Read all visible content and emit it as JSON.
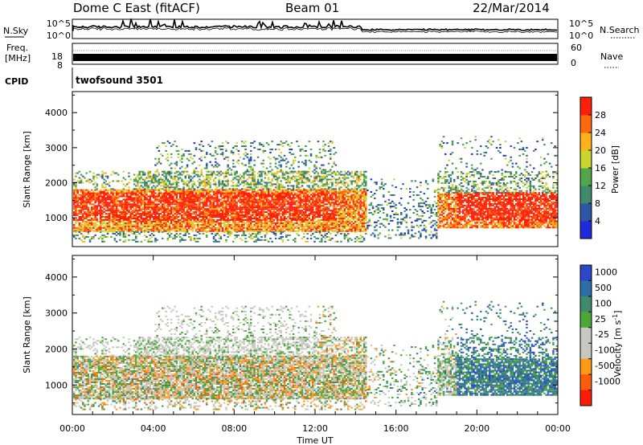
{
  "header": {
    "station": "Dome C East (fitACF)",
    "beam": "Beam 01",
    "date": "22/Mar/2014"
  },
  "panels": {
    "noise": {
      "left_label": "N.Sky",
      "left_ticks": [
        "10^5",
        "10^0"
      ],
      "right_label": "N.Search",
      "right_ticks": [
        "10^5",
        "10^0"
      ]
    },
    "freq": {
      "left_label_1": "Freq.",
      "left_label_2": "[MHz]",
      "left_ticks": [
        "18",
        "8"
      ],
      "right_label": "Nave",
      "right_ticks": [
        "60",
        "0"
      ]
    },
    "cpid": {
      "label": "CPID",
      "program": "twofsound 3501"
    }
  },
  "colors": {
    "power_scale": [
      "#1e2bd8",
      "#2d57a6",
      "#3f8a6a",
      "#52a64a",
      "#c9d630",
      "#ffb21a",
      "#ff6a10",
      "#ff1f0a"
    ],
    "velocity_scale": [
      "#ff1a0a",
      "#ff5d0c",
      "#ff9a18",
      "#c8c8c0",
      "#c8c8c0",
      "#4aa838",
      "#3f8a6a",
      "#2d6ea6",
      "#2a48c8"
    ]
  },
  "chart_data": [
    {
      "type": "heatmap",
      "name": "power",
      "ylabel": "Slant Range [km]",
      "yticks": [
        1000,
        2000,
        3000,
        4000
      ],
      "ylim": [
        180,
        4600
      ],
      "xlim": [
        0,
        24
      ],
      "colorbar": {
        "label": "Power [dB]",
        "ticks": [
          "4",
          "8",
          "12",
          "16",
          "20",
          "24",
          "28"
        ],
        "range": [
          0,
          32
        ]
      }
    },
    {
      "type": "heatmap",
      "name": "velocity",
      "ylabel": "Slant Range [km]",
      "yticks": [
        1000,
        2000,
        3000,
        4000
      ],
      "ylim": [
        180,
        4600
      ],
      "xlim": [
        0,
        24
      ],
      "xlabel": "Time UT",
      "xticks": [
        "00:00",
        "04:00",
        "08:00",
        "12:00",
        "16:00",
        "20:00",
        "00:00"
      ],
      "colorbar": {
        "label": "Velocity [m s",
        "label_sup": "-1",
        "label_end": "]",
        "ticks": [
          "1000",
          "500",
          "100",
          "25",
          "-25",
          "-100",
          "-500",
          "-1000"
        ]
      }
    }
  ]
}
